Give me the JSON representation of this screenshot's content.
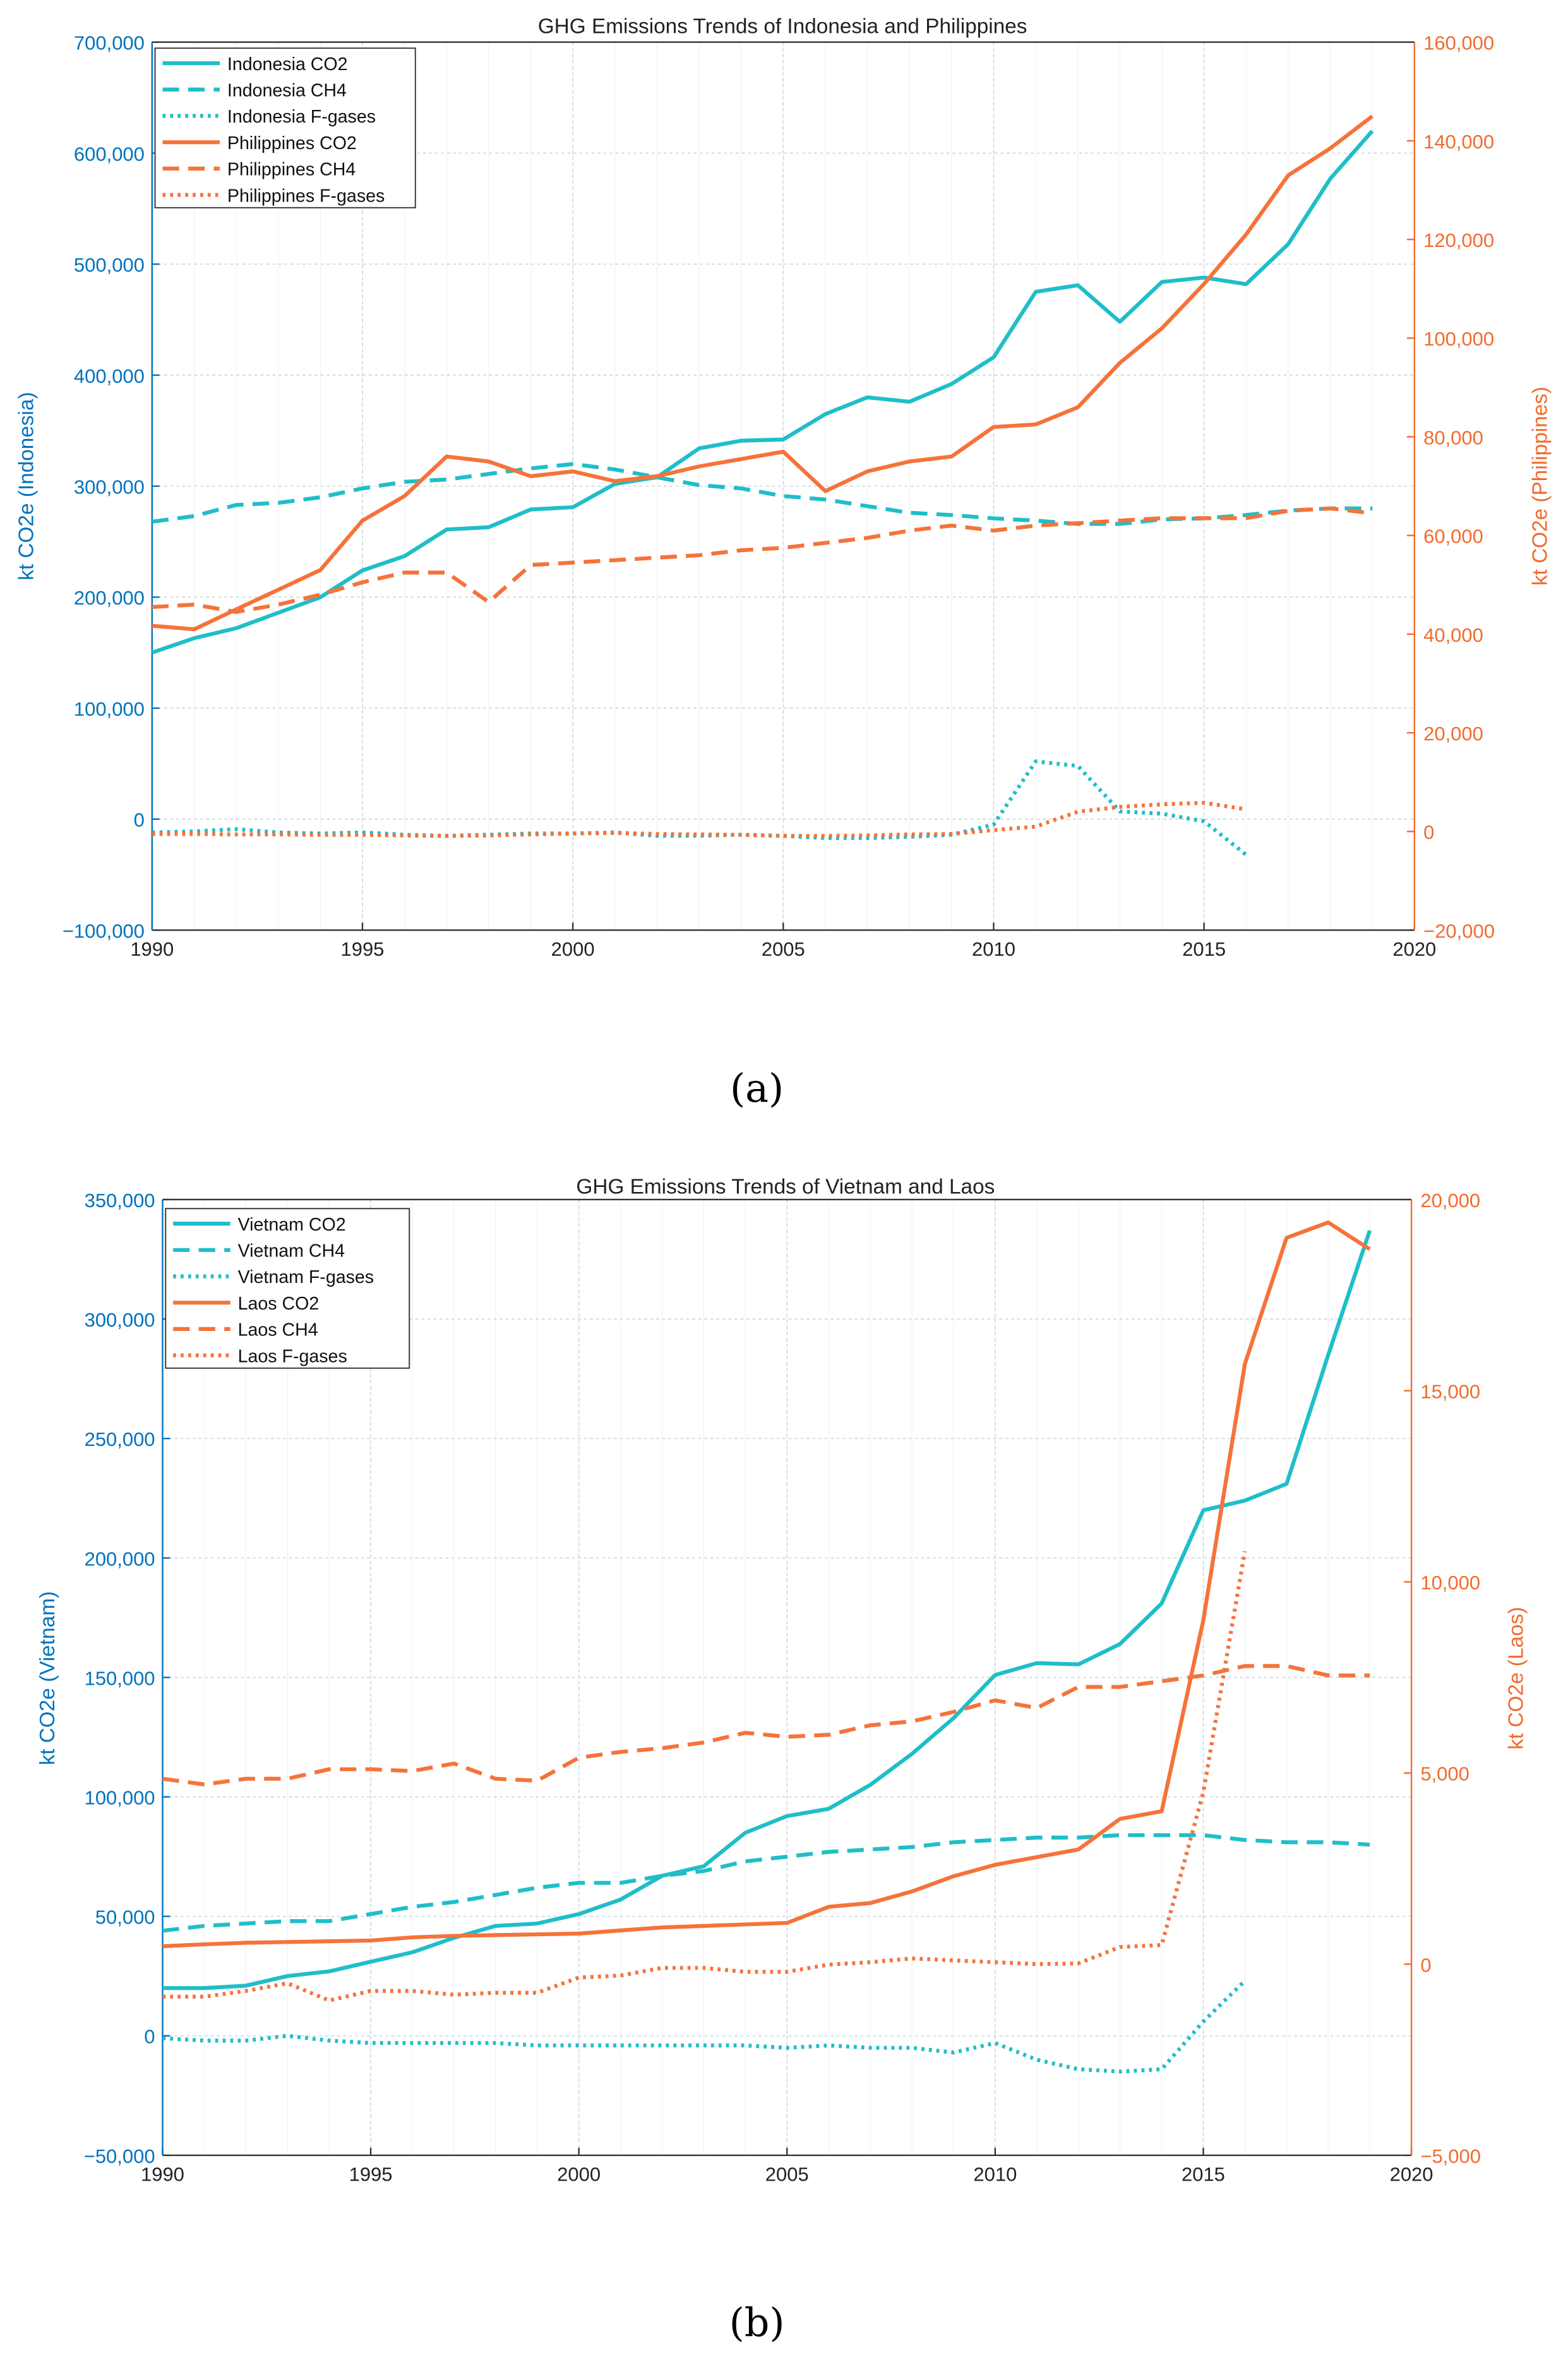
{
  "chart_data": [
    {
      "type": "line",
      "title": "GHG Emissions Trends of Indonesia and Philippines",
      "caption_letter": "a",
      "xlabel": "",
      "ylabel_left": "kt CO2e (Indonesia)",
      "ylabel_right": "kt CO2e (Philippines)",
      "xlim": [
        1990,
        2020
      ],
      "ylim_left": [
        -100000,
        700000
      ],
      "ylim_right": [
        -20000,
        160000
      ],
      "xticks": [
        1990,
        1995,
        2000,
        2005,
        2010,
        2015,
        2020
      ],
      "yticks_left": [
        -100000,
        0,
        100000,
        200000,
        300000,
        400000,
        500000,
        600000,
        700000
      ],
      "yticks_right": [
        -20000,
        0,
        20000,
        40000,
        60000,
        80000,
        100000,
        120000,
        140000,
        160000
      ],
      "grid": true,
      "legend_position": "top-left",
      "colors": {
        "left_axis": "#0072BD",
        "right_axis": "#F26B2D",
        "series_a": "#1FBEC8",
        "series_b": "#F5733A"
      },
      "series": [
        {
          "name": "Indonesia CO2",
          "axis": "left",
          "style": "solid",
          "color": "#1FBEC8",
          "x_start": 1990,
          "values": [
            150000,
            163000,
            172000,
            186000,
            200000,
            224000,
            237000,
            261000,
            263000,
            279000,
            281000,
            302000,
            308000,
            334000,
            341000,
            342000,
            365000,
            380000,
            376000,
            392000,
            416000,
            475000,
            481000,
            448000,
            484000,
            488000,
            482000,
            518000,
            577000,
            620000
          ]
        },
        {
          "name": "Indonesia CH4",
          "axis": "left",
          "style": "dashed",
          "color": "#1FBEC8",
          "x_start": 1990,
          "values": [
            268000,
            273000,
            283000,
            285000,
            290000,
            298000,
            304000,
            306000,
            311000,
            316000,
            320000,
            315000,
            308000,
            301000,
            298000,
            291000,
            288000,
            282000,
            276000,
            274000,
            271000,
            269000,
            266000,
            266000,
            270000,
            271000,
            274000,
            278000,
            280000,
            280000
          ]
        },
        {
          "name": "Indonesia F-gases",
          "axis": "left",
          "style": "dotted",
          "color": "#1FBEC8",
          "x_start": 1990,
          "values": [
            -12000,
            -11000,
            -9000,
            -12000,
            -13000,
            -12000,
            -14000,
            -15000,
            -14000,
            -13000,
            -13000,
            -12000,
            -15000,
            -15000,
            -14000,
            -15000,
            -17000,
            -17000,
            -16000,
            -14000,
            -5000,
            52000,
            48000,
            7000,
            5000,
            -2000,
            -32000
          ]
        },
        {
          "name": "Philippines CO2",
          "axis": "right",
          "style": "solid",
          "color": "#F5733A",
          "x_start": 1990,
          "values": [
            41700,
            41000,
            45000,
            49000,
            53000,
            63000,
            68000,
            76000,
            75000,
            72000,
            73000,
            71000,
            72000,
            74000,
            75500,
            77000,
            69000,
            73000,
            75000,
            76000,
            82000,
            82500,
            86000,
            95000,
            102000,
            111000,
            121000,
            133000,
            138500,
            145000
          ]
        },
        {
          "name": "Philippines CH4",
          "axis": "right",
          "style": "dashed",
          "color": "#F5733A",
          "x_start": 1990,
          "values": [
            45500,
            46000,
            44500,
            46000,
            48000,
            50500,
            52500,
            52500,
            46500,
            54000,
            54500,
            55000,
            55500,
            56000,
            57000,
            57500,
            58500,
            59500,
            61000,
            62000,
            61000,
            62000,
            62500,
            63000,
            63500,
            63500,
            63500,
            65000,
            65500,
            64500
          ]
        },
        {
          "name": "Philippines F-gases",
          "axis": "right",
          "style": "dotted",
          "color": "#F5733A",
          "x_start": 1990,
          "values": [
            -500,
            -500,
            -600,
            -600,
            -700,
            -700,
            -800,
            -900,
            -800,
            -600,
            -400,
            -300,
            -500,
            -600,
            -700,
            -900,
            -900,
            -800,
            -600,
            -500,
            300,
            1000,
            4000,
            5000,
            5500,
            5800,
            4500
          ]
        }
      ]
    },
    {
      "type": "line",
      "title": "GHG Emissions Trends of Vietnam and Laos",
      "caption_letter": "b",
      "xlabel": "",
      "ylabel_left": "kt CO2e (Vietnam)",
      "ylabel_right": "kt CO2e (Laos)",
      "xlim": [
        1990,
        2020
      ],
      "ylim_left": [
        -50000,
        350000
      ],
      "ylim_right": [
        -5000,
        20000
      ],
      "xticks": [
        1990,
        1995,
        2000,
        2005,
        2010,
        2015,
        2020
      ],
      "yticks_left": [
        -50000,
        0,
        50000,
        100000,
        150000,
        200000,
        250000,
        300000,
        350000
      ],
      "yticks_right": [
        -5000,
        0,
        5000,
        10000,
        15000,
        20000
      ],
      "grid": true,
      "legend_position": "top-left",
      "colors": {
        "left_axis": "#0072BD",
        "right_axis": "#F26B2D",
        "series_a": "#1FBEC8",
        "series_b": "#F5733A"
      },
      "series": [
        {
          "name": "Vietnam CO2",
          "axis": "left",
          "style": "solid",
          "color": "#1FBEC8",
          "x_start": 1990,
          "values": [
            20000,
            20000,
            21000,
            25000,
            27000,
            31000,
            35000,
            41000,
            46000,
            47000,
            51000,
            57000,
            67000,
            71000,
            85000,
            92000,
            95000,
            105000,
            118000,
            133000,
            151000,
            156000,
            155500,
            164000,
            181000,
            220000,
            224000,
            231000,
            285000,
            337000
          ]
        },
        {
          "name": "Vietnam CH4",
          "axis": "left",
          "style": "dashed",
          "color": "#1FBEC8",
          "x_start": 1990,
          "values": [
            44000,
            46000,
            47000,
            48000,
            48000,
            51000,
            54000,
            56000,
            59000,
            62000,
            64000,
            64000,
            67000,
            69000,
            73000,
            75000,
            77000,
            78000,
            79000,
            81000,
            82000,
            83000,
            83000,
            84000,
            84000,
            84000,
            82000,
            81000,
            81000,
            80000
          ]
        },
        {
          "name": "Vietnam F-gases",
          "axis": "left",
          "style": "dotted",
          "color": "#1FBEC8",
          "x_start": 1990,
          "values": [
            -1000,
            -2000,
            -2000,
            0,
            -2000,
            -3000,
            -3000,
            -3000,
            -3000,
            -4000,
            -4000,
            -4000,
            -4000,
            -4000,
            -4000,
            -5000,
            -4000,
            -5000,
            -5000,
            -7000,
            -3000,
            -10000,
            -14000,
            -15000,
            -14000,
            6000,
            23000
          ]
        },
        {
          "name": "Laos CO2",
          "axis": "right",
          "style": "solid",
          "color": "#F5733A",
          "x_start": 1990,
          "values": [
            470,
            520,
            560,
            580,
            600,
            620,
            700,
            740,
            760,
            780,
            800,
            880,
            960,
            1000,
            1040,
            1080,
            1500,
            1600,
            1900,
            2300,
            2600,
            2800,
            3000,
            3800,
            4000,
            9000,
            15700,
            19000,
            19400,
            18700
          ]
        },
        {
          "name": "Laos CH4",
          "axis": "right",
          "style": "dashed",
          "color": "#F5733A",
          "x_start": 1990,
          "values": [
            4850,
            4700,
            4850,
            4850,
            5100,
            5100,
            5050,
            5250,
            4850,
            4800,
            5400,
            5550,
            5650,
            5800,
            6050,
            5950,
            6000,
            6250,
            6350,
            6600,
            6900,
            6700,
            7250,
            7250,
            7400,
            7550,
            7800,
            7800,
            7550,
            7550
          ]
        },
        {
          "name": "Laos F-gases",
          "axis": "right",
          "style": "dotted",
          "color": "#F5733A",
          "x_start": 1990,
          "values": [
            -850,
            -850,
            -700,
            -500,
            -950,
            -700,
            -700,
            -800,
            -750,
            -750,
            -350,
            -300,
            -100,
            -100,
            -200,
            -200,
            -10,
            50,
            150,
            100,
            50,
            0,
            20,
            450,
            500,
            4500,
            10800
          ]
        }
      ]
    }
  ],
  "captions": [
    "(a)",
    "(b)"
  ]
}
